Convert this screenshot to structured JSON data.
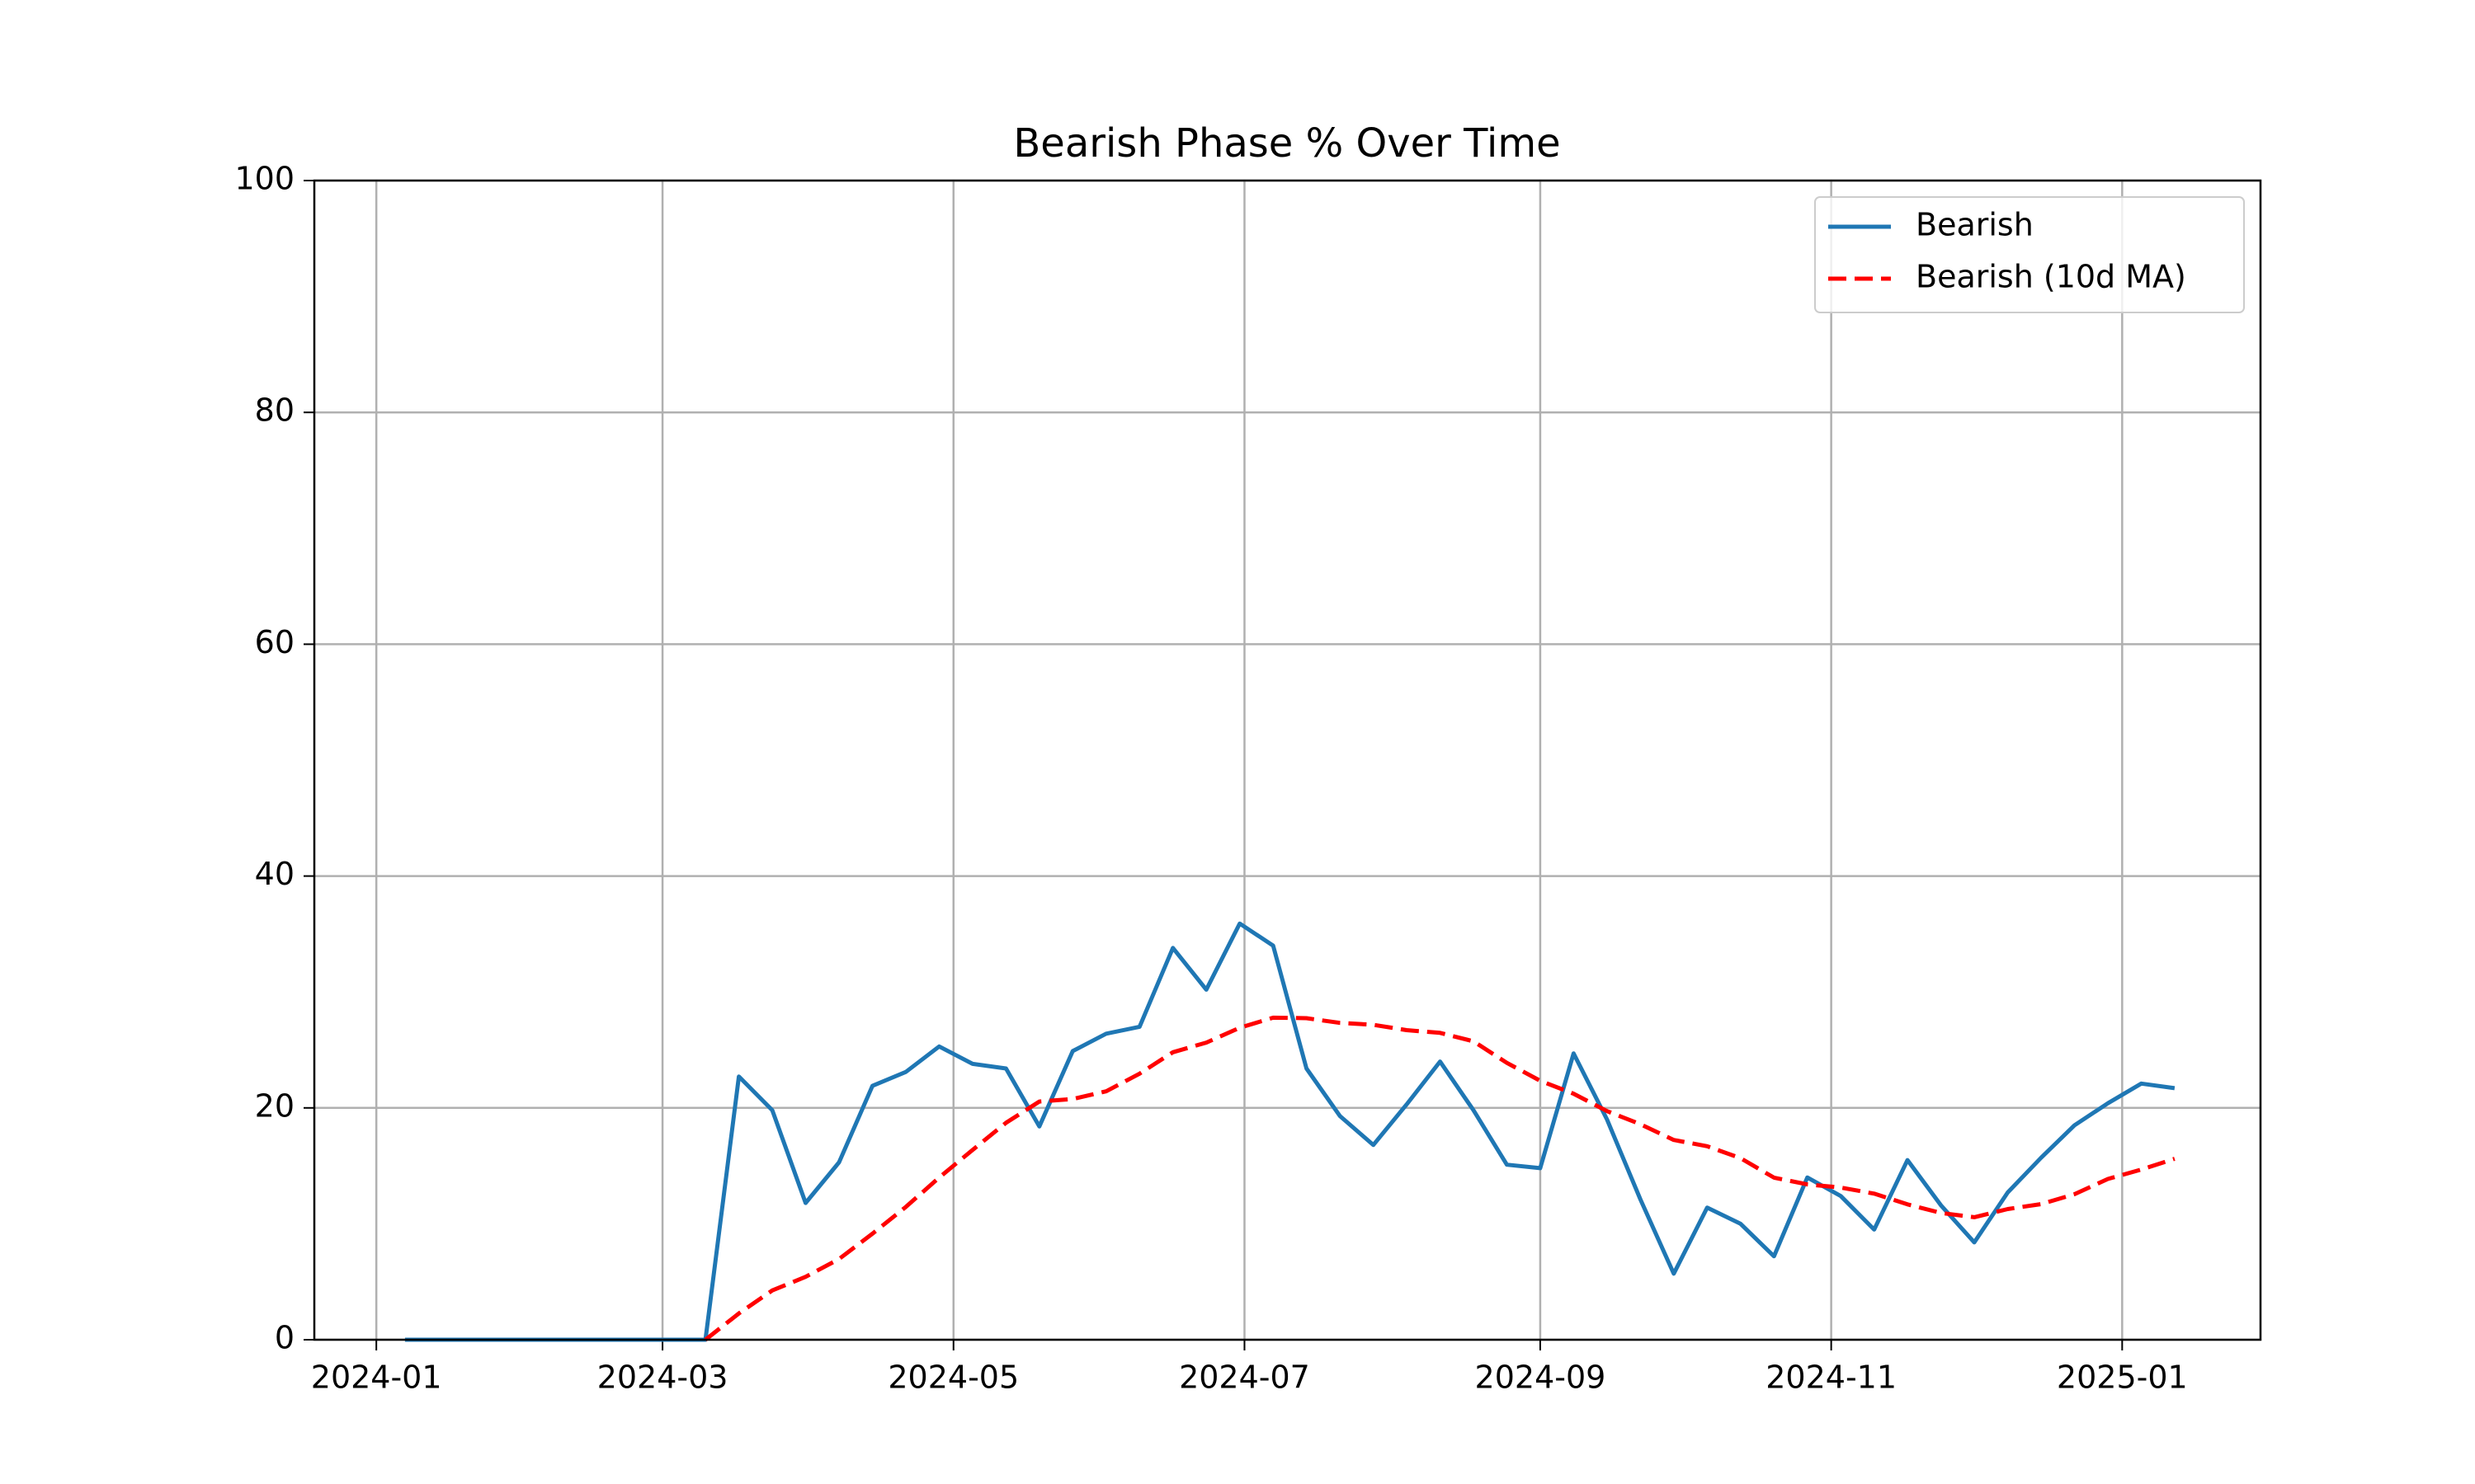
{
  "chart_data": {
    "type": "line",
    "title": "Bearish Phase % Over Time",
    "x": [
      "2024-01-07",
      "2024-01-14",
      "2024-01-21",
      "2024-01-28",
      "2024-02-04",
      "2024-02-11",
      "2024-02-18",
      "2024-02-25",
      "2024-03-03",
      "2024-03-10",
      "2024-03-17",
      "2024-03-24",
      "2024-03-31",
      "2024-04-07",
      "2024-04-14",
      "2024-04-21",
      "2024-04-28",
      "2024-05-05",
      "2024-05-12",
      "2024-05-19",
      "2024-05-26",
      "2024-06-02",
      "2024-06-09",
      "2024-06-16",
      "2024-06-23",
      "2024-06-30",
      "2024-07-07",
      "2024-07-14",
      "2024-07-21",
      "2024-07-28",
      "2024-08-04",
      "2024-08-11",
      "2024-08-18",
      "2024-08-25",
      "2024-09-01",
      "2024-09-08",
      "2024-09-15",
      "2024-09-22",
      "2024-09-29",
      "2024-10-06",
      "2024-10-13",
      "2024-10-20",
      "2024-10-27",
      "2024-11-03",
      "2024-11-10",
      "2024-11-17",
      "2024-11-24",
      "2024-12-01",
      "2024-12-08",
      "2024-12-15",
      "2024-12-22",
      "2024-12-29",
      "2025-01-05",
      "2025-01-12"
    ],
    "series": [
      {
        "name": "Bearish",
        "color": "#1f77b4",
        "linestyle": "solid",
        "values": [
          0,
          0,
          0,
          0,
          0,
          0,
          0,
          0,
          0,
          0,
          22.7,
          19.8,
          11.8,
          15.3,
          21.9,
          23.1,
          25.3,
          23.8,
          23.4,
          18.4,
          24.9,
          26.4,
          27.0,
          33.8,
          30.2,
          35.9,
          34.0,
          23.4,
          19.3,
          16.8,
          20.3,
          24.0,
          19.8,
          15.1,
          14.8,
          24.7,
          19.0,
          12.1,
          5.7,
          11.4,
          10.0,
          7.2,
          14.0,
          12.4,
          9.5,
          15.5,
          11.6,
          8.4,
          12.7,
          15.7,
          18.5,
          20.4,
          22.1,
          21.7
        ]
      },
      {
        "name": "Bearish (10d MA)",
        "color": "#ff0000",
        "linestyle": "dashed",
        "values": [
          null,
          null,
          null,
          null,
          null,
          null,
          null,
          null,
          null,
          0,
          2.27,
          4.25,
          5.43,
          6.96,
          9.15,
          11.46,
          13.99,
          16.37,
          18.71,
          20.55,
          20.77,
          21.43,
          22.95,
          24.8,
          25.63,
          26.91,
          27.78,
          27.74,
          27.33,
          27.17,
          26.71,
          26.47,
          25.75,
          23.88,
          22.34,
          21.22,
          19.72,
          18.59,
          17.23,
          16.69,
          15.66,
          13.98,
          13.4,
          13.13,
          12.6,
          11.68,
          10.94,
          10.57,
          11.27,
          11.7,
          12.55,
          13.87,
          14.68,
          15.61
        ]
      }
    ],
    "xlim": [
      "2023-12-19",
      "2025-01-30"
    ],
    "xticks": [
      {
        "value": "2024-01-01",
        "label": "2024-01"
      },
      {
        "value": "2024-03-01",
        "label": "2024-03"
      },
      {
        "value": "2024-05-01",
        "label": "2024-05"
      },
      {
        "value": "2024-07-01",
        "label": "2024-07"
      },
      {
        "value": "2024-09-01",
        "label": "2024-09"
      },
      {
        "value": "2024-11-01",
        "label": "2024-11"
      },
      {
        "value": "2025-01-01",
        "label": "2025-01"
      }
    ],
    "ylim": [
      0,
      100
    ],
    "yticks": [
      0,
      20,
      40,
      60,
      80,
      100
    ],
    "grid": true,
    "legend": "upper right"
  }
}
